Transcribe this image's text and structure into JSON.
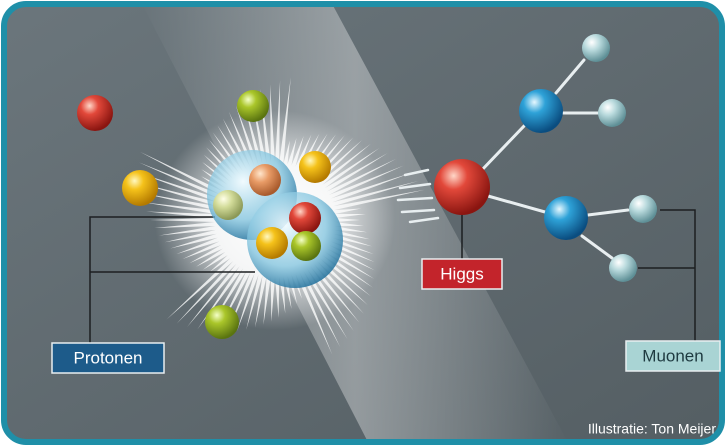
{
  "labels": {
    "higgs": "Higgs",
    "protons": "Protonen",
    "muons": "Muonen"
  },
  "credit": "Illustratie: Ton Meijer"
}
